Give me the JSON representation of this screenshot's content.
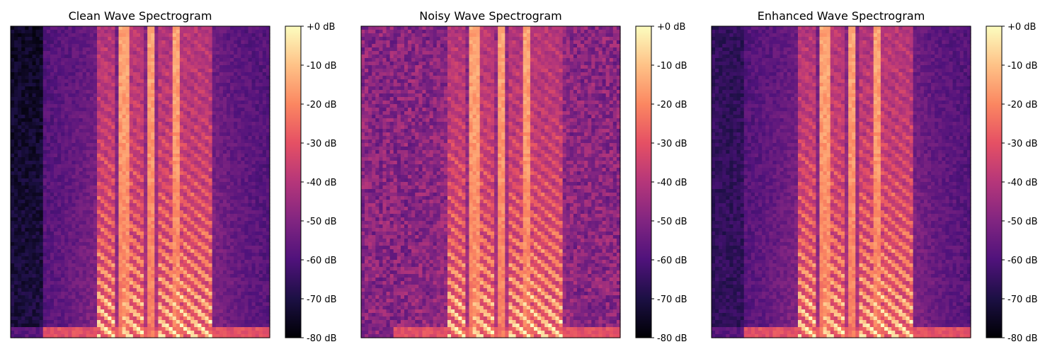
{
  "chart_data": [
    {
      "type": "heatmap",
      "title": "Clean Wave Spectrogram",
      "noise_level": 0.0,
      "colormap": "magma",
      "colorbar": {
        "vmin": -80,
        "vmax": 0,
        "unit": "dB",
        "tick_labels": [
          "+0 dB",
          "-10 dB",
          "-20 dB",
          "-30 dB",
          "-40 dB",
          "-50 dB",
          "-60 dB",
          "-70 dB",
          "-80 dB"
        ]
      },
      "x_ticks": [],
      "y_ticks": []
    },
    {
      "type": "heatmap",
      "title": "Noisy Wave Spectrogram",
      "noise_level": 1.0,
      "colormap": "magma",
      "colorbar": {
        "vmin": -80,
        "vmax": 0,
        "unit": "dB",
        "tick_labels": [
          "+0 dB",
          "-10 dB",
          "-20 dB",
          "-30 dB",
          "-40 dB",
          "-50 dB",
          "-60 dB",
          "-70 dB",
          "-80 dB"
        ]
      },
      "x_ticks": [],
      "y_ticks": []
    },
    {
      "type": "heatmap",
      "title": "Enhanced Wave Spectrogram",
      "noise_level": 0.45,
      "colormap": "magma",
      "colorbar": {
        "vmin": -80,
        "vmax": 0,
        "unit": "dB",
        "tick_labels": [
          "+0 dB",
          "-10 dB",
          "-20 dB",
          "-30 dB",
          "-40 dB",
          "-50 dB",
          "-60 dB",
          "-70 dB",
          "-80 dB"
        ]
      },
      "x_ticks": [],
      "y_ticks": []
    }
  ]
}
